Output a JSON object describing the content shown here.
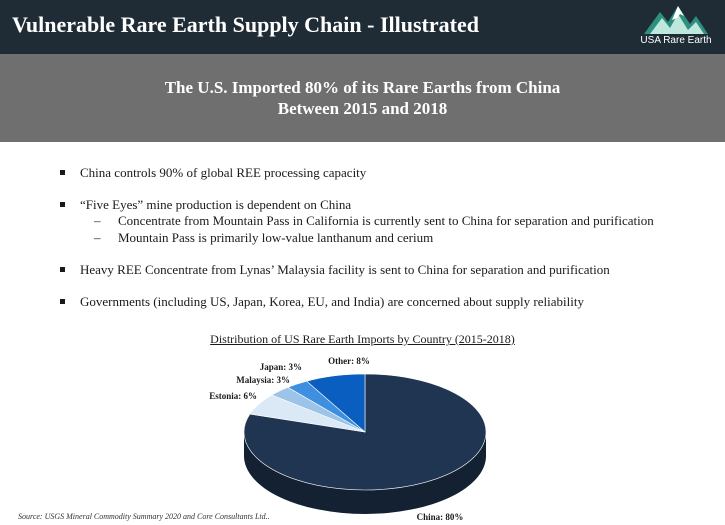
{
  "header": {
    "title": "Vulnerable Rare Earth Supply Chain - Illustrated",
    "logo_text": "USA Rare Earth"
  },
  "banner": {
    "line1": "The U.S. Imported 80% of its Rare Earths from China",
    "line2": "Between 2015 and 2018"
  },
  "bullets": [
    {
      "text": "China controls 90% of global REE processing capacity",
      "subs": []
    },
    {
      "text": "“Five Eyes” mine production is dependent on China",
      "subs": [
        "Concentrate from Mountain Pass in California is currently sent to China for separation and purification",
        "Mountain Pass is primarily low-value lanthanum and cerium"
      ]
    },
    {
      "text": "Heavy REE Concentrate from Lynas’ Malaysia facility is sent to China for separation and purification",
      "subs": []
    },
    {
      "text": "Governments (including US, Japan, Korea, EU, and India) are concerned about supply reliability",
      "subs": []
    }
  ],
  "sub_dash": "–",
  "source": "Source: USGS Mineral Commodity Summary 2020 and Core Consultants Ltd..",
  "chart_data": {
    "type": "pie",
    "title": "Distribution of US Rare Earth Imports by Country (2015-2018)",
    "style": "3d",
    "slices": [
      {
        "label": "China: 80%",
        "value": 80,
        "color": "#1f3552"
      },
      {
        "label": "Estonia: 6%",
        "value": 6,
        "color": "#dbe8f5"
      },
      {
        "label": "Malaysia: 3%",
        "value": 3,
        "color": "#9cc3e8"
      },
      {
        "label": "Japan: 3%",
        "value": 3,
        "color": "#3e8fe0"
      },
      {
        "label": "Other: 8%",
        "value": 8,
        "color": "#0a5ec0"
      }
    ]
  }
}
